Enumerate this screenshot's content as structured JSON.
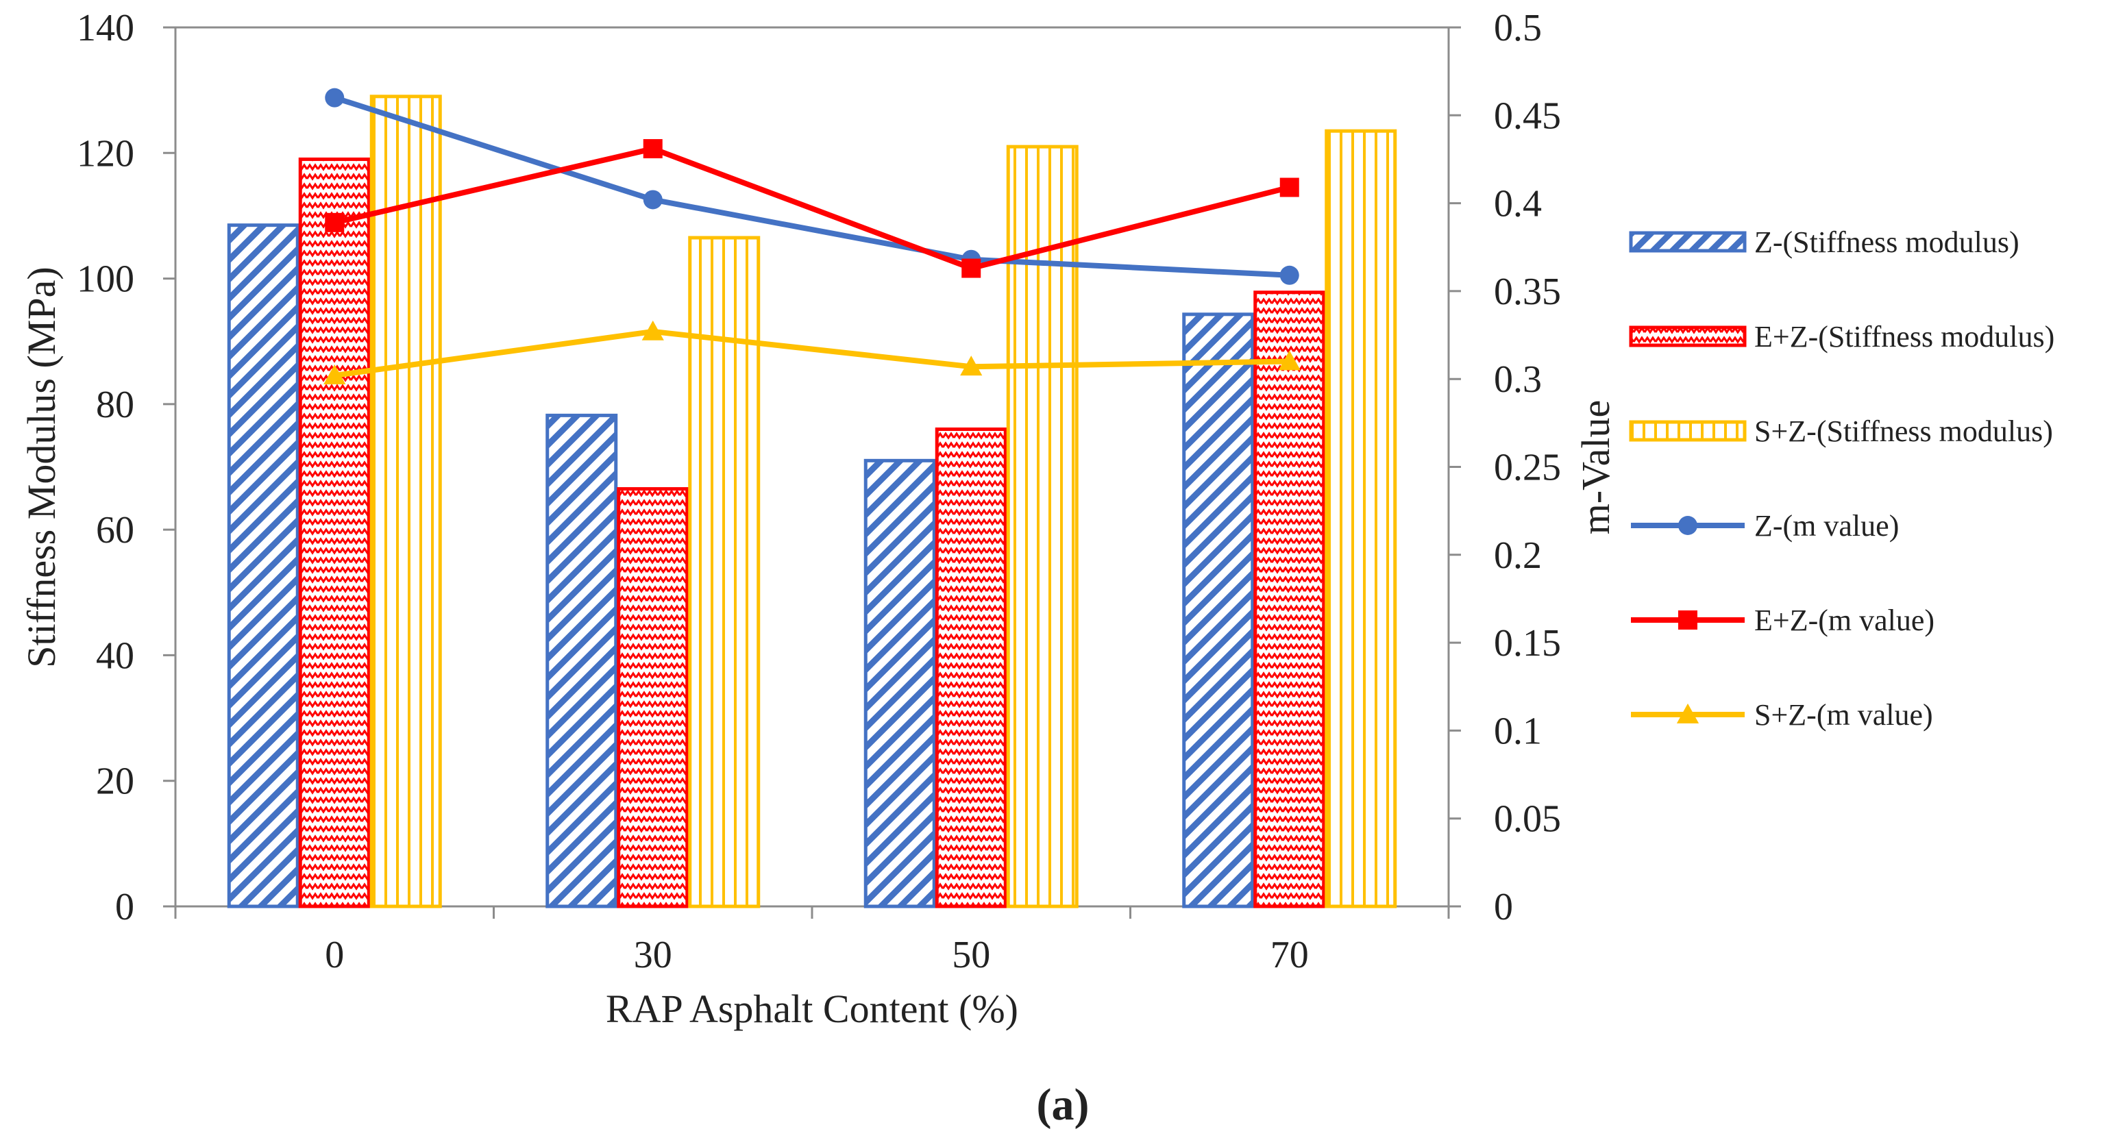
{
  "chart_data": {
    "type": "bar+line",
    "xlabel": "RAP Asphalt Content (%)",
    "ylabel_left": "Stiffness Modulus (MPa)",
    "ylabel_right": "m-Value",
    "categories": [
      "0",
      "30",
      "50",
      "70"
    ],
    "ylim_left": [
      0,
      140
    ],
    "yticks_left": [
      "0",
      "20",
      "40",
      "60",
      "80",
      "100",
      "120",
      "140"
    ],
    "ylim_right": [
      0,
      0.5
    ],
    "yticks_right": [
      "0",
      "0.05",
      "0.1",
      "0.15",
      "0.2",
      "0.25",
      "0.3",
      "0.35",
      "0.4",
      "0.45",
      "0.5"
    ],
    "bar_series": [
      {
        "name": "Z-(Stiffness modulus)",
        "values": [
          108.5,
          78.2,
          71.0,
          94.3
        ],
        "color": "#4472c4",
        "pattern": "diagonal"
      },
      {
        "name": "E+Z-(Stiffness modulus)",
        "values": [
          119.0,
          66.5,
          76.0,
          97.8
        ],
        "color": "#ff0000",
        "pattern": "zigzag"
      },
      {
        "name": "S+Z-(Stiffness modulus)",
        "values": [
          129.0,
          106.5,
          121.0,
          123.5
        ],
        "color": "#ffc000",
        "pattern": "vertical"
      }
    ],
    "line_series": [
      {
        "name": "Z-(m value)",
        "values": [
          0.46,
          0.402,
          0.368,
          0.359
        ],
        "color": "#4472c4",
        "marker": "circle"
      },
      {
        "name": "E+Z-(m value)",
        "values": [
          0.389,
          0.431,
          0.363,
          0.409
        ],
        "color": "#ff0000",
        "marker": "square"
      },
      {
        "name": "S+Z-(m value)",
        "values": [
          0.302,
          0.327,
          0.307,
          0.31
        ],
        "color": "#ffc000",
        "marker": "triangle"
      }
    ],
    "caption": "(a)"
  }
}
